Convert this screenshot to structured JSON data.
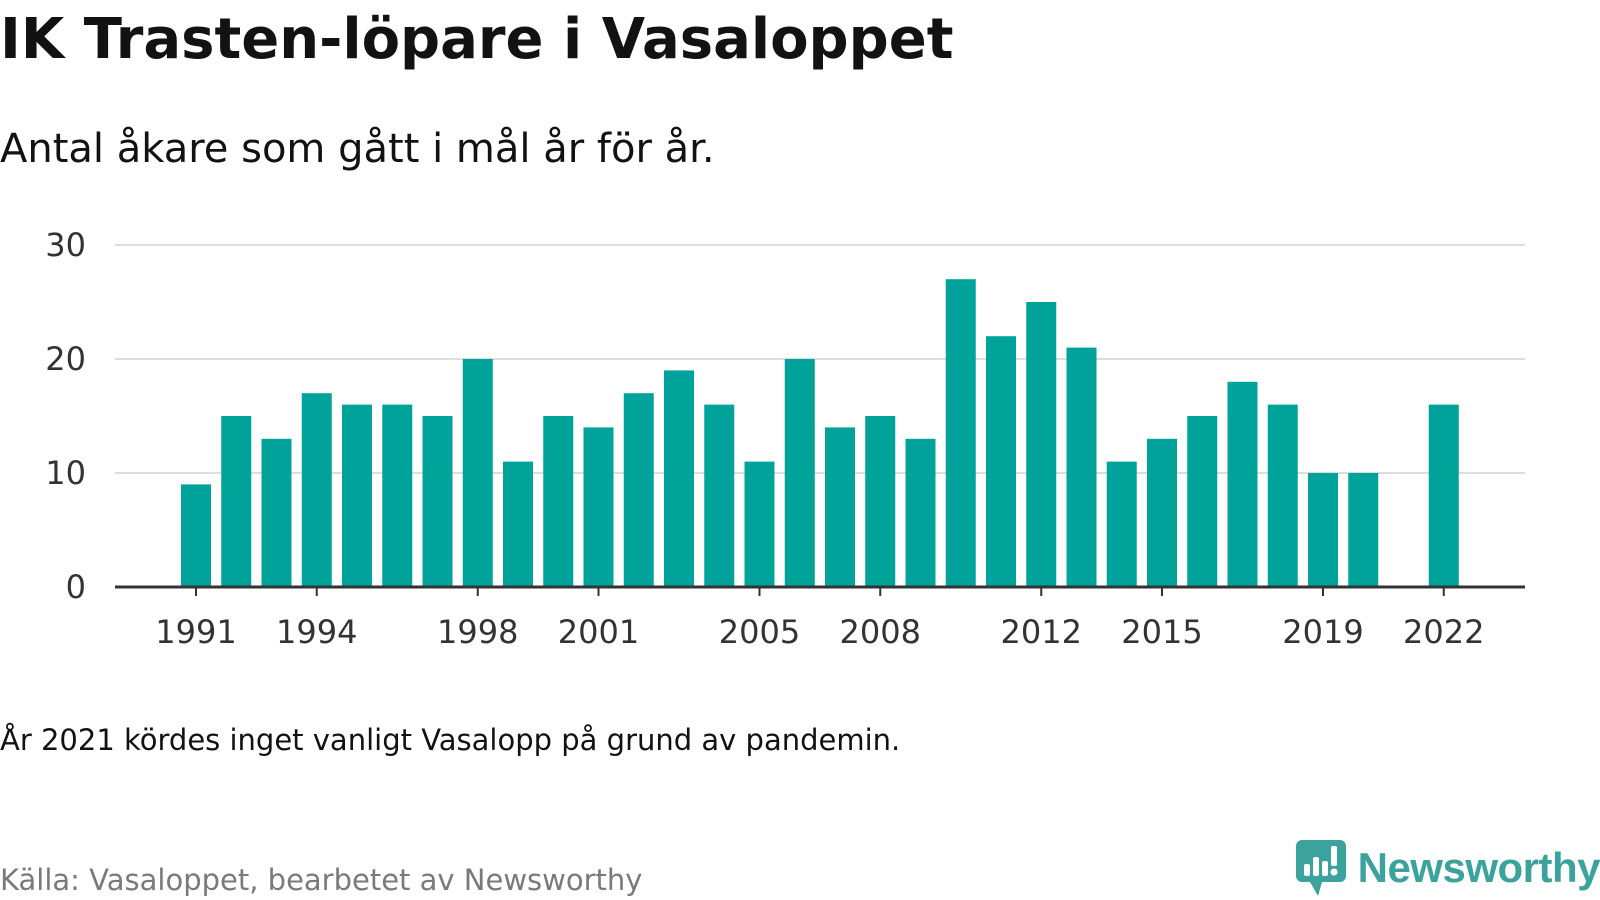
{
  "title": "IK Trasten-löpare i Vasaloppet",
  "subtitle": "Antal åkare som gått i mål år för år.",
  "note": "År 2021 kördes inget vanligt Vasalopp på grund av pandemin.",
  "source": "Källa: Vasaloppet, bearbetet av Newsworthy",
  "brand": {
    "name": "Newsworthy",
    "icon": "newsworthy-logo-icon",
    "color": "#3ba39b"
  },
  "colors": {
    "bar": "#00a39a",
    "grid": "#dddddd",
    "baseline": "#333333",
    "tick_text": "#333333"
  },
  "chart_data": {
    "type": "bar",
    "categories": [
      "1991",
      "1992",
      "1993",
      "1994",
      "1995",
      "1996",
      "1997",
      "1998",
      "1999",
      "2000",
      "2001",
      "2002",
      "2003",
      "2004",
      "2005",
      "2006",
      "2007",
      "2008",
      "2009",
      "2010",
      "2011",
      "2012",
      "2013",
      "2014",
      "2015",
      "2016",
      "2017",
      "2018",
      "2019",
      "2020",
      "2021",
      "2022"
    ],
    "values": [
      9,
      15,
      13,
      17,
      16,
      16,
      15,
      20,
      11,
      15,
      14,
      17,
      19,
      16,
      11,
      20,
      14,
      15,
      13,
      27,
      22,
      25,
      21,
      11,
      13,
      15,
      18,
      16,
      10,
      10,
      null,
      16
    ],
    "x_tick_labels": [
      "1991",
      "1994",
      "1998",
      "2001",
      "2005",
      "2008",
      "2012",
      "2015",
      "2019",
      "2022"
    ],
    "y_ticks": [
      "0",
      "10",
      "20",
      "30"
    ],
    "ylim": [
      0,
      30
    ],
    "grid": true,
    "xlabel": "",
    "ylabel": ""
  }
}
